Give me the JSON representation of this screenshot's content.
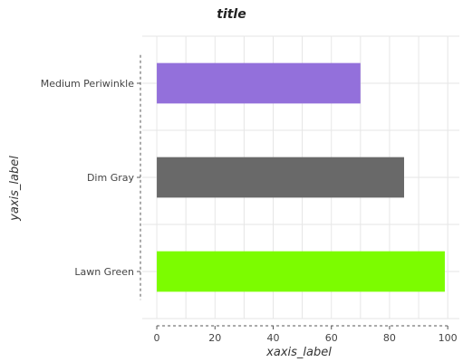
{
  "chart_data": {
    "type": "bar",
    "orientation": "horizontal",
    "title": "title",
    "xlabel": "xaxis_label",
    "ylabel": "yaxis_label",
    "categories": [
      "Lawn Green",
      "Dim Gray",
      "Medium Periwinkle"
    ],
    "values": [
      99,
      85,
      70
    ],
    "colors": [
      "#7cfc00",
      "#696969",
      "#9370db"
    ],
    "xlim": [
      -5,
      104
    ],
    "xticks": [
      0,
      20,
      40,
      60,
      80,
      100
    ],
    "grid": true,
    "legend": "none"
  }
}
